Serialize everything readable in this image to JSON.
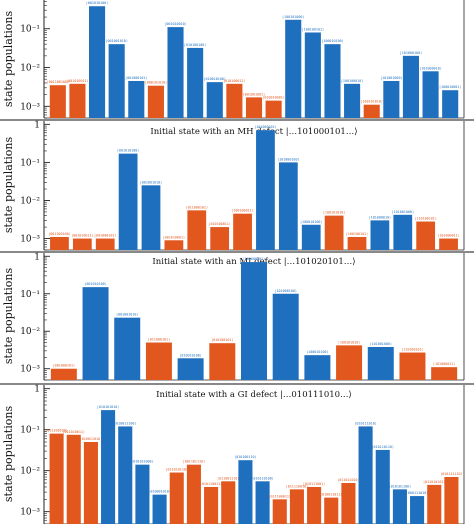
{
  "colors": {
    "blue": "#1f6fbf",
    "orange": "#e2571e",
    "axis": "#222222",
    "separator": "#888888"
  },
  "chart_data": [
    {
      "type": "bar",
      "title": "",
      "ylabel": "state populations",
      "yscale": "log",
      "ylim": [
        0.0005,
        0.55
      ],
      "yticks": [
        {
          "value": 0.1,
          "label": "10⁻¹"
        },
        {
          "value": 0.01,
          "label": "10⁻²"
        },
        {
          "value": 0.001,
          "label": "10⁻³"
        }
      ],
      "bars": [
        {
          "value": 0.0035,
          "color": "orange",
          "label": "|001100100⟩"
        },
        {
          "value": 0.0038,
          "color": "orange",
          "label": "|001010011⟩"
        },
        {
          "value": 0.38,
          "color": "blue",
          "label": "|001010100⟩"
        },
        {
          "value": 0.04,
          "color": "blue",
          "label": "|001001010⟩"
        },
        {
          "value": 0.0045,
          "color": "blue",
          "label": "|001000101⟩"
        },
        {
          "value": 0.0034,
          "color": "orange",
          "label": "|000101010⟩"
        },
        {
          "value": 0.11,
          "color": "blue",
          "label": "|001010010⟩"
        },
        {
          "value": 0.032,
          "color": "blue",
          "label": "|010100100⟩"
        },
        {
          "value": 0.0042,
          "color": "blue",
          "label": "|010010100⟩"
        },
        {
          "value": 0.0038,
          "color": "orange",
          "label": "|010100011⟩"
        },
        {
          "value": 0.0017,
          "color": "orange",
          "label": "|001001001⟩"
        },
        {
          "value": 0.0014,
          "color": "orange",
          "label": "|010010001⟩"
        },
        {
          "value": 0.17,
          "color": "blue",
          "label": "|100101000⟩"
        },
        {
          "value": 0.08,
          "color": "blue",
          "label": "|100100101⟩"
        },
        {
          "value": 0.04,
          "color": "blue",
          "label": "|100010100⟩"
        },
        {
          "value": 0.0038,
          "color": "blue",
          "label": "|100100010⟩"
        },
        {
          "value": 0.0011,
          "color": "orange",
          "label": "|100101010⟩"
        },
        {
          "value": 0.0045,
          "color": "blue",
          "label": "|101001000⟩"
        },
        {
          "value": 0.02,
          "color": "blue",
          "label": "|101000100⟩"
        },
        {
          "value": 0.008,
          "color": "blue",
          "label": "|101000010⟩"
        },
        {
          "value": 0.0026,
          "color": "blue",
          "label": "|100010001⟩"
        }
      ]
    },
    {
      "type": "bar",
      "title": "Initial state with an MH defect |…101000101…⟩",
      "ylabel": "state populations",
      "yscale": "log",
      "ylim": [
        0.0005,
        1.3
      ],
      "yticks": [
        {
          "value": 1,
          "label": "1"
        },
        {
          "value": 0.1,
          "label": "10⁻¹"
        },
        {
          "value": 0.01,
          "label": "10⁻²"
        },
        {
          "value": 0.001,
          "label": "10⁻³"
        }
      ],
      "bars": [
        {
          "value": 0.0011,
          "color": "orange",
          "label": "|001100100⟩"
        },
        {
          "value": 0.001,
          "color": "orange",
          "label": "|001010011⟩"
        },
        {
          "value": 0.001,
          "color": "orange",
          "label": "|001000101⟩"
        },
        {
          "value": 0.17,
          "color": "blue",
          "label": "|001010100⟩"
        },
        {
          "value": 0.025,
          "color": "blue",
          "label": "|001001010⟩"
        },
        {
          "value": 0.0009,
          "color": "orange",
          "label": "|001010001⟩"
        },
        {
          "value": 0.0055,
          "color": "orange",
          "label": "|011000101⟩"
        },
        {
          "value": 0.002,
          "color": "orange",
          "label": "|010100011⟩"
        },
        {
          "value": 0.0045,
          "color": "orange",
          "label": "|100100011⟩"
        },
        {
          "value": 0.7,
          "color": "blue",
          "label": "|101000101⟩"
        },
        {
          "value": 0.1,
          "color": "blue",
          "label": "|101000100⟩"
        },
        {
          "value": 0.0023,
          "color": "blue",
          "label": "|100010100⟩"
        },
        {
          "value": 0.004,
          "color": "orange",
          "label": "|100101010⟩"
        },
        {
          "value": 0.0011,
          "color": "orange",
          "label": "|100100101⟩"
        },
        {
          "value": 0.003,
          "color": "blue",
          "label": "|101000010⟩"
        },
        {
          "value": 0.0042,
          "color": "blue",
          "label": "|101001000⟩"
        },
        {
          "value": 0.0028,
          "color": "orange",
          "label": "|110100101⟩"
        },
        {
          "value": 0.001,
          "color": "orange",
          "label": "|101000011⟩"
        }
      ]
    },
    {
      "type": "bar",
      "title": "Initial state with an MI defect |…101020101…⟩",
      "ylabel": "state populations",
      "yscale": "log",
      "ylim": [
        0.0005,
        1.3
      ],
      "yticks": [
        {
          "value": 1,
          "label": "1"
        },
        {
          "value": 0.1,
          "label": "10⁻¹"
        },
        {
          "value": 0.01,
          "label": "10⁻²"
        },
        {
          "value": 0.001,
          "label": "10⁻³"
        }
      ],
      "bars": [
        {
          "value": 0.001,
          "color": "orange",
          "label": "|001000101⟩"
        },
        {
          "value": 0.15,
          "color": "blue",
          "label": "|001010100⟩"
        },
        {
          "value": 0.023,
          "color": "blue",
          "label": "|001001010⟩"
        },
        {
          "value": 0.005,
          "color": "orange",
          "label": "|011000101⟩"
        },
        {
          "value": 0.0019,
          "color": "blue",
          "label": "|010010100⟩"
        },
        {
          "value": 0.0048,
          "color": "orange",
          "label": "|010100101⟩"
        },
        {
          "value": 0.7,
          "color": "blue",
          "label": "|101000101⟩"
        },
        {
          "value": 0.1,
          "color": "blue",
          "label": "|101000100⟩"
        },
        {
          "value": 0.0023,
          "color": "blue",
          "label": "|100010100⟩"
        },
        {
          "value": 0.0042,
          "color": "orange",
          "label": "|100101010⟩"
        },
        {
          "value": 0.0038,
          "color": "blue",
          "label": "|101001000⟩"
        },
        {
          "value": 0.0027,
          "color": "orange",
          "label": "|110100101⟩"
        },
        {
          "value": 0.0011,
          "color": "orange",
          "label": "|101000011⟩"
        }
      ]
    },
    {
      "type": "bar",
      "title": "Initial state with a GI defect |…010111010…⟩",
      "ylabel": "state populations",
      "yscale": "log",
      "ylim": [
        0.0005,
        1.3
      ],
      "yticks": [
        {
          "value": 1,
          "label": "1"
        },
        {
          "value": 0.1,
          "label": "10⁻¹"
        },
        {
          "value": 0.01,
          "label": "10⁻²"
        },
        {
          "value": 0.001,
          "label": "10⁻³"
        }
      ],
      "bars": [
        {
          "value": 0.08,
          "color": "orange",
          "label": "|011100100⟩"
        },
        {
          "value": 0.075,
          "color": "orange",
          "label": "|011010011⟩"
        },
        {
          "value": 0.05,
          "color": "orange",
          "label": "|010011010⟩"
        },
        {
          "value": 0.3,
          "color": "blue",
          "label": "|010101010⟩"
        },
        {
          "value": 0.12,
          "color": "blue",
          "label": "|010011100⟩"
        },
        {
          "value": 0.014,
          "color": "blue",
          "label": "|010101000⟩"
        },
        {
          "value": 0.0026,
          "color": "blue",
          "label": "|010001010⟩"
        },
        {
          "value": 0.009,
          "color": "orange",
          "label": "|011010110⟩"
        },
        {
          "value": 0.014,
          "color": "orange",
          "label": "|001101110⟩"
        },
        {
          "value": 0.004,
          "color": "orange",
          "label": "|010110011⟩"
        },
        {
          "value": 0.0055,
          "color": "orange",
          "label": "|011001110⟩"
        },
        {
          "value": 0.018,
          "color": "blue",
          "label": "|010100110⟩"
        },
        {
          "value": 0.0055,
          "color": "blue",
          "label": "|010110100⟩"
        },
        {
          "value": 0.002,
          "color": "orange",
          "label": "|011100011⟩"
        },
        {
          "value": 0.0035,
          "color": "orange",
          "label": "|011110010⟩"
        },
        {
          "value": 0.004,
          "color": "orange",
          "label": "|010111001⟩"
        },
        {
          "value": 0.0022,
          "color": "orange",
          "label": "|010011011⟩"
        },
        {
          "value": 0.005,
          "color": "orange",
          "label": "|011011010⟩"
        },
        {
          "value": 0.12,
          "color": "blue",
          "label": "|010111010⟩"
        },
        {
          "value": 0.032,
          "color": "blue",
          "label": "|010110110⟩"
        },
        {
          "value": 0.0035,
          "color": "blue",
          "label": "|010101100⟩"
        },
        {
          "value": 0.0024,
          "color": "blue",
          "label": "|000111010⟩"
        },
        {
          "value": 0.0045,
          "color": "orange",
          "label": "|011010101⟩"
        },
        {
          "value": 0.007,
          "color": "orange",
          "label": "|010111110⟩"
        }
      ]
    }
  ]
}
